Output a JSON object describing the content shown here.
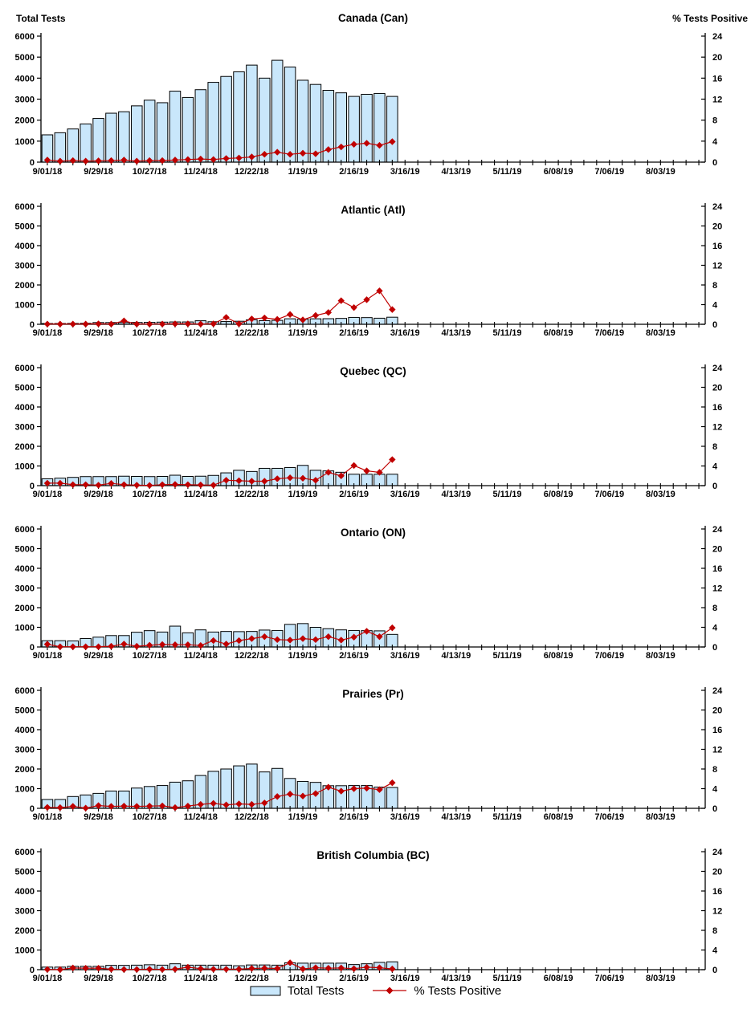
{
  "axes": {
    "left_axis": {
      "title": "Total Tests",
      "ticks": [
        0,
        1000,
        2000,
        3000,
        4000,
        5000,
        6000
      ],
      "max": 6000
    },
    "right_axis": {
      "title": "% Tests Positive",
      "ticks": [
        0,
        4,
        8,
        12,
        16,
        20,
        24
      ],
      "max": 24
    },
    "x_axis": {
      "labels": [
        "9/01/18",
        "9/29/18",
        "10/27/18",
        "11/24/18",
        "12/22/18",
        "1/19/19",
        "2/16/19",
        "3/16/19",
        "4/13/19",
        "5/11/19",
        "6/08/19",
        "7/06/19",
        "8/03/19"
      ],
      "label_week_step": 4,
      "total_weeks": 52,
      "data_weeks": 28
    }
  },
  "colors": {
    "bar_fill": "#c9e7fb",
    "bar_border": "#000000",
    "line_color": "#c00000",
    "axis_color": "#000000",
    "text_color": "#000000"
  },
  "legend": {
    "bars_label": "Total Tests",
    "line_label": "% Tests Positive"
  },
  "chart_data": [
    {
      "id": "canada",
      "type": "bar+line",
      "title": "Canada (Can)",
      "series": [
        {
          "name": "Total Tests",
          "axis": "left",
          "type": "bar",
          "values": [
            1300,
            1400,
            1580,
            1820,
            2080,
            2330,
            2400,
            2680,
            2950,
            2830,
            3380,
            3080,
            3450,
            3800,
            4080,
            4300,
            4620,
            4000,
            4850,
            4530,
            3900,
            3700,
            3420,
            3300,
            3130,
            3230,
            3270,
            3130
          ]
        },
        {
          "name": "% Tests Positive",
          "axis": "right",
          "type": "line",
          "values": [
            0.4,
            0.2,
            0.3,
            0.2,
            0.25,
            0.3,
            0.4,
            0.2,
            0.3,
            0.3,
            0.4,
            0.5,
            0.6,
            0.5,
            0.7,
            0.8,
            1.0,
            1.5,
            1.9,
            1.5,
            1.7,
            1.6,
            2.4,
            2.9,
            3.4,
            3.6,
            3.2,
            3.9
          ]
        }
      ]
    },
    {
      "id": "atlantic",
      "type": "bar+line",
      "title": "Atlantic (Atl)",
      "series": [
        {
          "name": "Total Tests",
          "axis": "left",
          "type": "bar",
          "values": [
            40,
            40,
            45,
            50,
            90,
            90,
            90,
            95,
            100,
            110,
            120,
            120,
            180,
            130,
            140,
            155,
            230,
            185,
            200,
            280,
            260,
            280,
            285,
            300,
            350,
            340,
            310,
            360
          ]
        },
        {
          "name": "% Tests Positive",
          "axis": "right",
          "type": "line",
          "values": [
            0.05,
            0.05,
            0.05,
            0.05,
            0.1,
            0.05,
            0.7,
            0.05,
            0.05,
            0.05,
            0.1,
            0.1,
            0.05,
            0.1,
            1.4,
            0.1,
            1.1,
            1.3,
            1.0,
            2.0,
            0.9,
            1.8,
            2.4,
            4.8,
            3.4,
            5.0,
            6.8,
            3.0
          ]
        }
      ]
    },
    {
      "id": "quebec",
      "type": "bar+line",
      "title": "Quebec (QC)",
      "series": [
        {
          "name": "Total Tests",
          "axis": "left",
          "type": "bar",
          "values": [
            350,
            380,
            420,
            460,
            460,
            460,
            480,
            470,
            460,
            470,
            530,
            470,
            480,
            520,
            650,
            780,
            720,
            880,
            880,
            920,
            1030,
            780,
            750,
            680,
            580,
            580,
            580,
            580
          ]
        },
        {
          "name": "% Tests Positive",
          "axis": "right",
          "type": "line",
          "values": [
            0.5,
            0.5,
            0.2,
            0.2,
            0.1,
            0.45,
            0.2,
            0.1,
            0.05,
            0.2,
            0.25,
            0.2,
            0.15,
            0.1,
            1.1,
            1.0,
            0.9,
            0.9,
            1.4,
            1.6,
            1.5,
            1.1,
            2.7,
            2.0,
            4.1,
            3.0,
            2.7,
            5.3
          ]
        }
      ]
    },
    {
      "id": "ontario",
      "type": "bar+line",
      "title": "Ontario (ON)",
      "series": [
        {
          "name": "Total Tests",
          "axis": "left",
          "type": "bar",
          "values": [
            320,
            320,
            310,
            430,
            500,
            580,
            580,
            750,
            830,
            760,
            1060,
            720,
            870,
            760,
            790,
            780,
            790,
            860,
            840,
            1150,
            1190,
            1000,
            930,
            870,
            840,
            830,
            820,
            640
          ]
        },
        {
          "name": "% Tests Positive",
          "axis": "right",
          "type": "line",
          "values": [
            0.55,
            0.05,
            0.05,
            0.05,
            0.05,
            0.15,
            0.6,
            0.15,
            0.35,
            0.5,
            0.45,
            0.45,
            0.3,
            1.3,
            0.6,
            1.3,
            1.7,
            2.1,
            1.5,
            1.4,
            1.7,
            1.5,
            2.1,
            1.4,
            2.0,
            3.2,
            2.1,
            3.9
          ]
        }
      ]
    },
    {
      "id": "prairies",
      "type": "bar+line",
      "title": "Prairies (Pr)",
      "series": [
        {
          "name": "Total Tests",
          "axis": "left",
          "type": "bar",
          "values": [
            450,
            450,
            600,
            680,
            760,
            880,
            880,
            1030,
            1110,
            1160,
            1330,
            1400,
            1670,
            1880,
            2000,
            2160,
            2250,
            1850,
            2030,
            1520,
            1370,
            1320,
            1150,
            1150,
            1160,
            1160,
            1080,
            1060
          ]
        },
        {
          "name": "% Tests Positive",
          "axis": "right",
          "type": "line",
          "values": [
            0.2,
            0.15,
            0.4,
            0.05,
            0.55,
            0.4,
            0.45,
            0.4,
            0.45,
            0.5,
            0.15,
            0.45,
            0.8,
            1.0,
            0.7,
            0.9,
            0.8,
            1.1,
            2.4,
            2.9,
            2.5,
            3.0,
            4.3,
            3.5,
            4.0,
            4.1,
            3.8,
            5.2
          ]
        }
      ]
    },
    {
      "id": "british-columbia",
      "type": "bar+line",
      "title": "British Columbia (BC)",
      "series": [
        {
          "name": "Total Tests",
          "axis": "left",
          "type": "bar",
          "values": [
            130,
            130,
            170,
            170,
            170,
            220,
            220,
            230,
            250,
            230,
            300,
            230,
            230,
            230,
            230,
            200,
            240,
            240,
            230,
            350,
            330,
            330,
            330,
            330,
            260,
            300,
            370,
            400
          ]
        },
        {
          "name": "% Tests Positive",
          "axis": "right",
          "type": "line",
          "values": [
            0.05,
            0.02,
            0.35,
            0.3,
            0.3,
            0.1,
            0.05,
            0.05,
            0.1,
            0.05,
            0.1,
            0.5,
            0.2,
            0.1,
            0.1,
            0.1,
            0.25,
            0.3,
            0.25,
            1.4,
            0.15,
            0.4,
            0.3,
            0.35,
            0.2,
            0.5,
            0.4,
            0.15
          ]
        }
      ]
    }
  ]
}
